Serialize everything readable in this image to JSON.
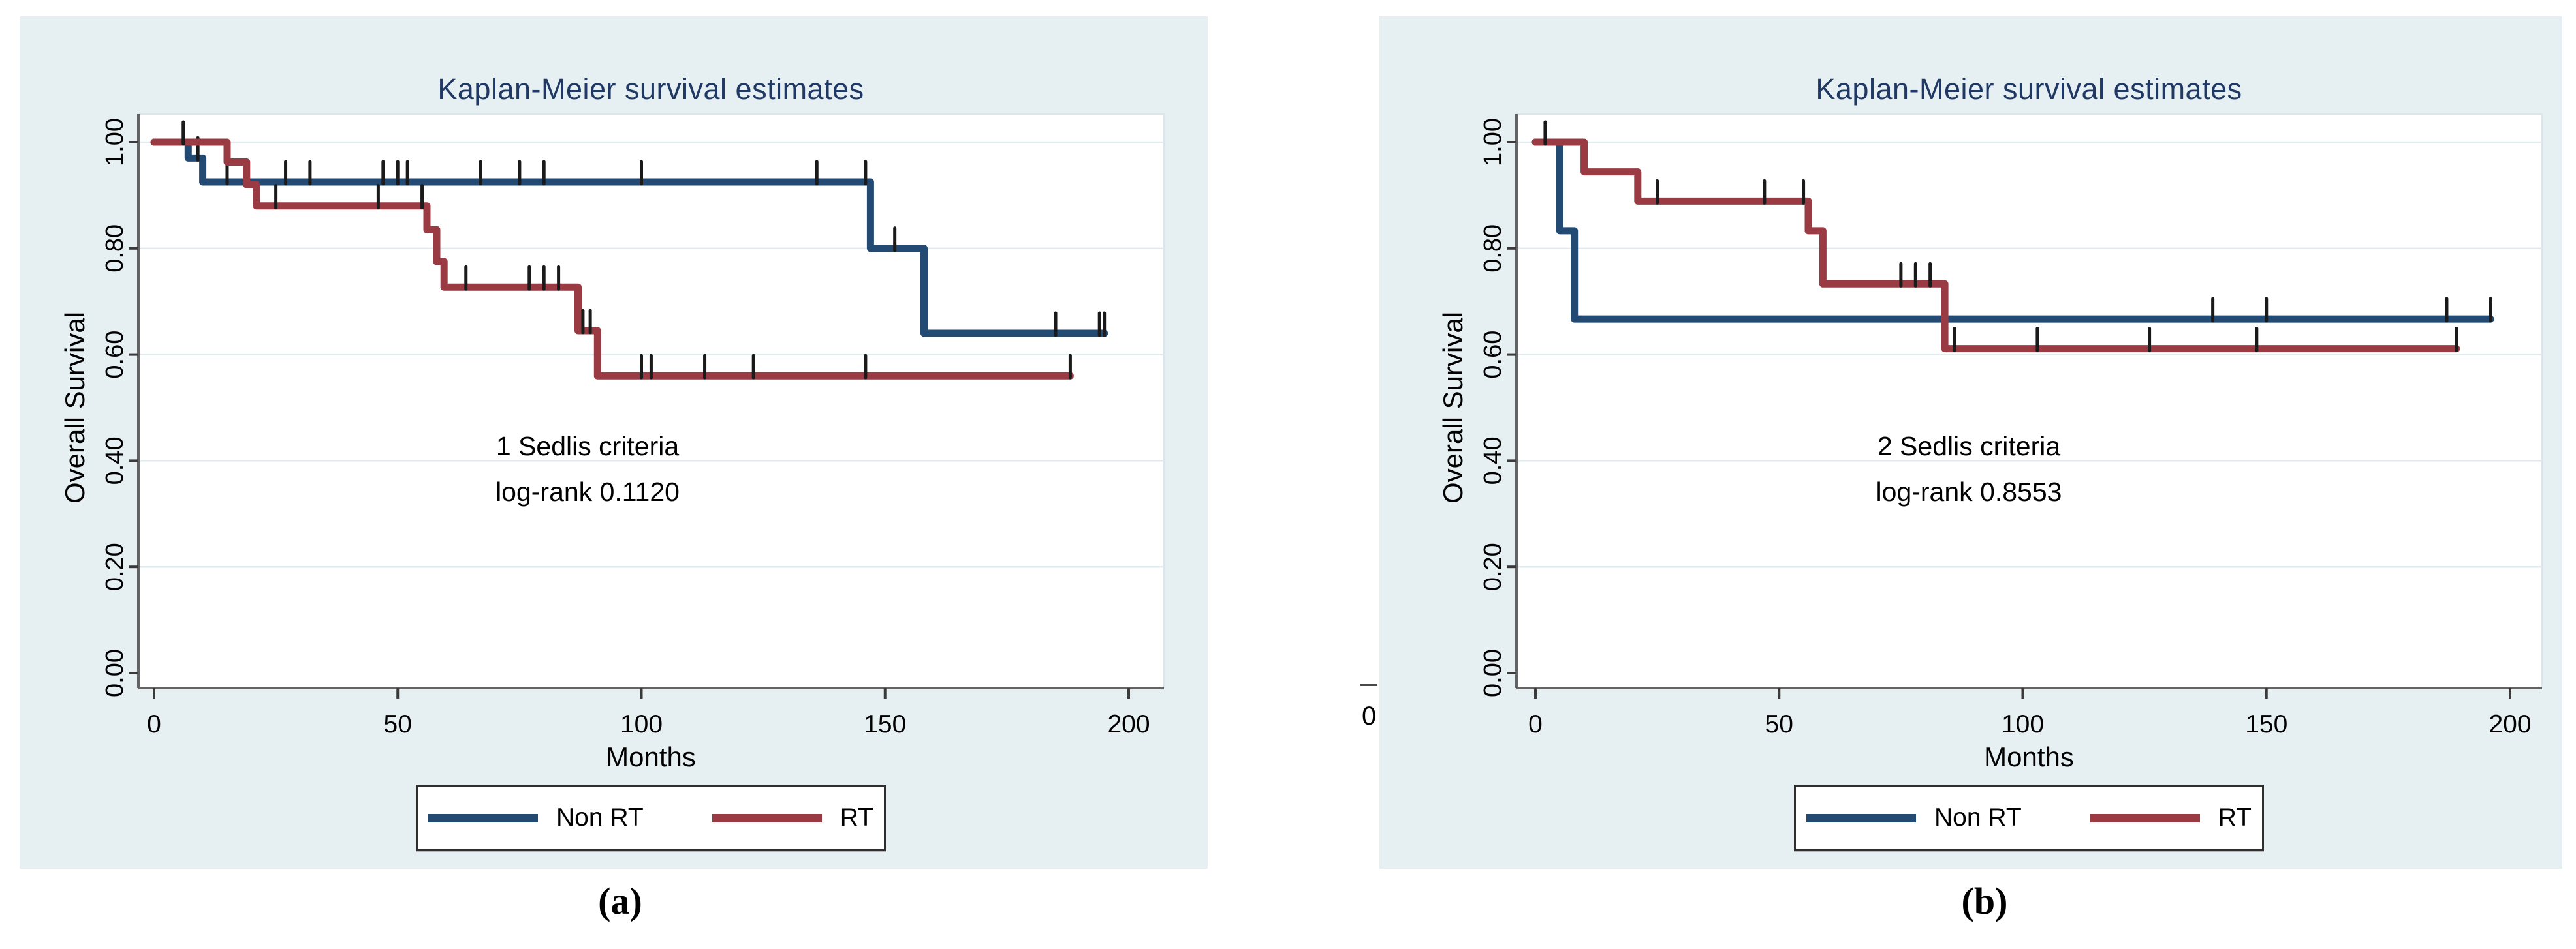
{
  "figure": {
    "background": "#ffffff",
    "panel_background": "#e6eff2",
    "title_color": "#1f3864",
    "axis_color": "#636363",
    "tick_color": "#3a3a3a",
    "grid_color": "#e0ecef",
    "censor_color": "#1a1a1a",
    "nonrt_color": "#234a72",
    "rt_color": "#9a3b44"
  },
  "captions": {
    "a": "(a)",
    "b": "(b)"
  },
  "stray_axis_fragment": {
    "tick_label": "0"
  },
  "chart_data": [
    {
      "type": "line",
      "subtype": "kaplan-meier-step",
      "title": "Kaplan-Meier survival estimates",
      "xlabel": "Months",
      "ylabel": "Overall Survival",
      "annotation": [
        "1 Sedlis criteria",
        "log-rank 0.1120"
      ],
      "xlim": [
        0,
        207
      ],
      "ylim": [
        0,
        1.05
      ],
      "x_ticks": [
        0,
        50,
        100,
        150,
        200
      ],
      "y_ticks": [
        {
          "v": 1.0,
          "label": "1.00"
        },
        {
          "v": 0.8,
          "label": "0.80"
        },
        {
          "v": 0.6,
          "label": "0.60"
        },
        {
          "v": 0.4,
          "label": "0.40"
        },
        {
          "v": 0.2,
          "label": "0.20"
        },
        {
          "v": 0.0,
          "label": "0.00"
        }
      ],
      "grid": true,
      "legend_position": "bottom",
      "series": [
        {
          "name": "Non RT",
          "color": "#234a72",
          "steps": [
            [
              0,
              1.0
            ],
            [
              7,
              1.0
            ],
            [
              7,
              0.97
            ],
            [
              10,
              0.97
            ],
            [
              10,
              0.925
            ],
            [
              147,
              0.925
            ],
            [
              147,
              0.8
            ],
            [
              158,
              0.8
            ],
            [
              158,
              0.64
            ],
            [
              195,
              0.64
            ]
          ],
          "censors": [
            [
              9,
              0.97
            ],
            [
              15,
              0.925
            ],
            [
              19,
              0.925
            ],
            [
              27,
              0.925
            ],
            [
              32,
              0.925
            ],
            [
              47,
              0.925
            ],
            [
              50,
              0.925
            ],
            [
              52,
              0.925
            ],
            [
              67,
              0.925
            ],
            [
              75,
              0.925
            ],
            [
              80,
              0.925
            ],
            [
              100,
              0.925
            ],
            [
              136,
              0.925
            ],
            [
              146,
              0.925
            ],
            [
              152,
              0.8
            ],
            [
              185,
              0.64
            ],
            [
              194,
              0.64
            ],
            [
              195,
              0.64
            ]
          ]
        },
        {
          "name": "RT",
          "color": "#9a3b44",
          "steps": [
            [
              0,
              1.0
            ],
            [
              15,
              1.0
            ],
            [
              15,
              0.9625
            ],
            [
              19,
              0.9625
            ],
            [
              19,
              0.92
            ],
            [
              21,
              0.92
            ],
            [
              21,
              0.88
            ],
            [
              56,
              0.88
            ],
            [
              56,
              0.835
            ],
            [
              58,
              0.835
            ],
            [
              58,
              0.775
            ],
            [
              59.5,
              0.775
            ],
            [
              59.5,
              0.727
            ],
            [
              87,
              0.727
            ],
            [
              87,
              0.645
            ],
            [
              91,
              0.645
            ],
            [
              91,
              0.56
            ],
            [
              188,
              0.56
            ]
          ],
          "censors": [
            [
              6,
              1.0
            ],
            [
              25,
              0.88
            ],
            [
              46,
              0.88
            ],
            [
              55,
              0.88
            ],
            [
              64,
              0.727
            ],
            [
              77,
              0.727
            ],
            [
              80,
              0.727
            ],
            [
              83,
              0.727
            ],
            [
              88,
              0.645
            ],
            [
              89.5,
              0.645
            ],
            [
              100,
              0.56
            ],
            [
              102,
              0.56
            ],
            [
              113,
              0.56
            ],
            [
              123,
              0.56
            ],
            [
              146,
              0.56
            ],
            [
              188,
              0.56
            ]
          ]
        }
      ]
    },
    {
      "type": "line",
      "subtype": "kaplan-meier-step",
      "title": "Kaplan-Meier survival estimates",
      "xlabel": "Months",
      "ylabel": "Overall Survival",
      "annotation": [
        "2 Sedlis criteria",
        "log-rank 0.8553"
      ],
      "xlim": [
        0,
        207
      ],
      "ylim": [
        0,
        1.05
      ],
      "x_ticks": [
        0,
        50,
        100,
        150,
        200
      ],
      "y_ticks": [
        {
          "v": 1.0,
          "label": "1.00"
        },
        {
          "v": 0.8,
          "label": "0.80"
        },
        {
          "v": 0.6,
          "label": "0.60"
        },
        {
          "v": 0.4,
          "label": "0.40"
        },
        {
          "v": 0.2,
          "label": "0.20"
        },
        {
          "v": 0.0,
          "label": "0.00"
        }
      ],
      "grid": true,
      "legend_position": "bottom",
      "series": [
        {
          "name": "Non RT",
          "color": "#234a72",
          "steps": [
            [
              0,
              1.0
            ],
            [
              5,
              1.0
            ],
            [
              5,
              0.833
            ],
            [
              8,
              0.833
            ],
            [
              8,
              0.667
            ],
            [
              196,
              0.667
            ]
          ],
          "censors": [
            [
              139,
              0.667
            ],
            [
              150,
              0.667
            ],
            [
              187,
              0.667
            ],
            [
              196,
              0.667
            ]
          ]
        },
        {
          "name": "RT",
          "color": "#9a3b44",
          "steps": [
            [
              0,
              1.0
            ],
            [
              10,
              1.0
            ],
            [
              10,
              0.944
            ],
            [
              21,
              0.944
            ],
            [
              21,
              0.889
            ],
            [
              56,
              0.889
            ],
            [
              56,
              0.833
            ],
            [
              59,
              0.833
            ],
            [
              59,
              0.733
            ],
            [
              84,
              0.733
            ],
            [
              84,
              0.611
            ],
            [
              189,
              0.611
            ]
          ],
          "censors": [
            [
              2,
              1.0
            ],
            [
              25,
              0.889
            ],
            [
              47,
              0.889
            ],
            [
              55,
              0.889
            ],
            [
              75,
              0.733
            ],
            [
              78,
              0.733
            ],
            [
              81,
              0.733
            ],
            [
              86,
              0.611
            ],
            [
              103,
              0.611
            ],
            [
              126,
              0.611
            ],
            [
              148,
              0.611
            ],
            [
              189,
              0.611
            ]
          ]
        }
      ]
    }
  ]
}
